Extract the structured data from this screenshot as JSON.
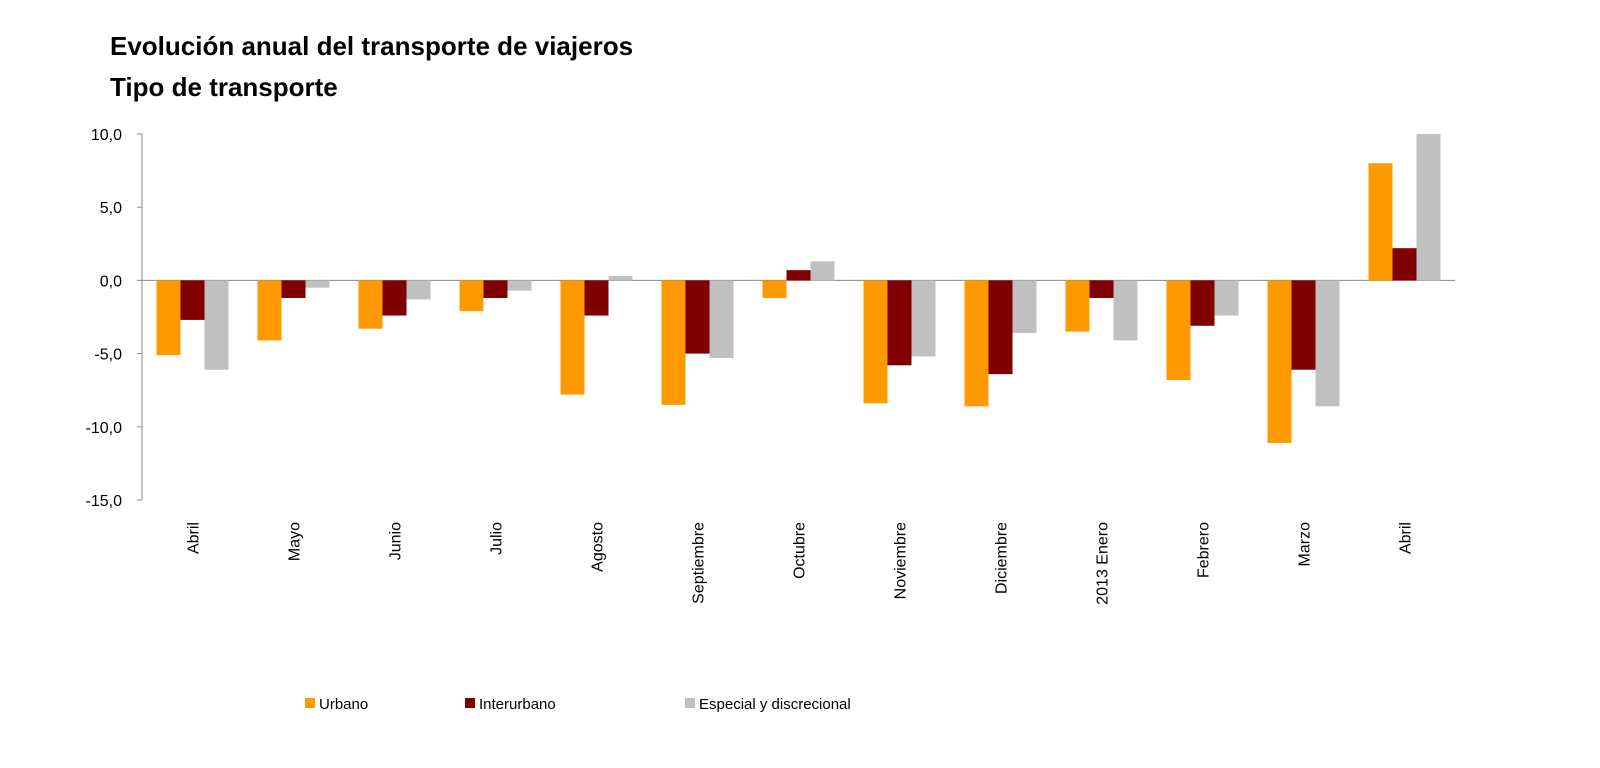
{
  "chart_data": {
    "type": "bar",
    "title": "Evolución anual del transporte de viajeros",
    "subtitle": "Tipo de transporte",
    "categories": [
      "Abril",
      "Mayo",
      "Junio",
      "Julio",
      "Agosto",
      "Septiembre",
      "Octubre",
      "Noviembre",
      "Diciembre",
      "2013 Enero",
      "Febrero",
      "Marzo",
      "Abril"
    ],
    "series": [
      {
        "name": "Urbano",
        "color": "#ff9900",
        "values": [
          -5.1,
          -4.1,
          -3.3,
          -2.1,
          -7.8,
          -8.5,
          -1.2,
          -8.4,
          -8.6,
          -3.5,
          -6.8,
          -11.1,
          8.0
        ]
      },
      {
        "name": "Interurbano",
        "color": "#800000",
        "values": [
          -2.7,
          -1.2,
          -2.4,
          -1.2,
          -2.4,
          -5.0,
          0.7,
          -5.8,
          -6.4,
          -1.2,
          -3.1,
          -6.1,
          2.2
        ]
      },
      {
        "name": "Especial y discrecional",
        "color": "#c0c0c0",
        "values": [
          -6.1,
          -0.5,
          -1.3,
          -0.7,
          0.3,
          -5.3,
          1.3,
          -5.2,
          -3.6,
          -4.1,
          -2.4,
          -8.6,
          10.0
        ]
      }
    ],
    "ylim": [
      -15,
      10
    ],
    "yticks": [
      {
        "value": -15,
        "label": "-15,0"
      },
      {
        "value": -10,
        "label": "-10,0"
      },
      {
        "value": -5,
        "label": "-5,0"
      },
      {
        "value": 0,
        "label": "0,0"
      },
      {
        "value": 5,
        "label": "5,0"
      },
      {
        "value": 10,
        "label": "10,0"
      }
    ],
    "legend": "bottom"
  }
}
